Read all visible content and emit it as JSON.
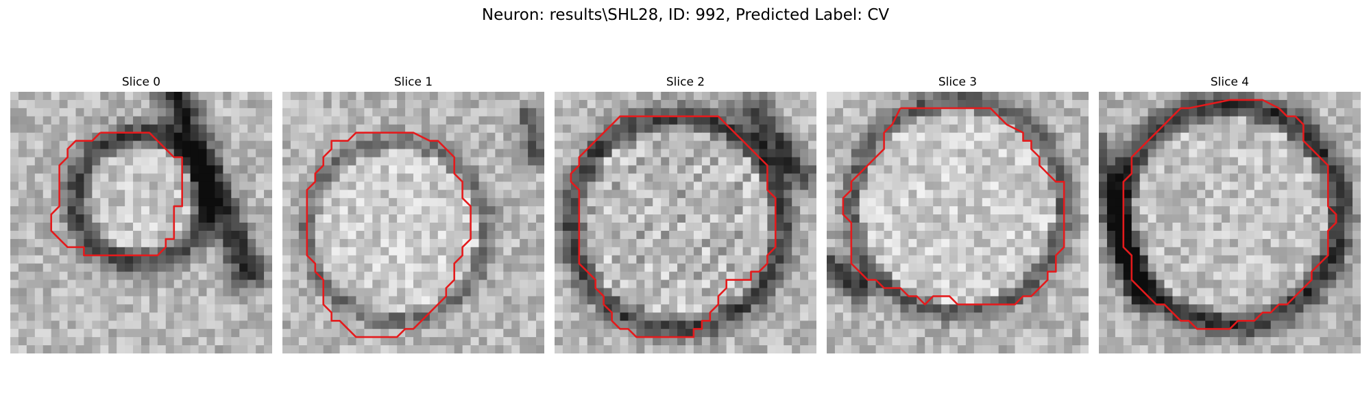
{
  "figure": {
    "title": "Neuron: results\\SHL28, ID: 992, Predicted Label: CV"
  },
  "panels": [
    {
      "label": "Slice 0",
      "contour": [
        [
          11,
          5
        ],
        [
          17,
          5
        ],
        [
          20,
          8
        ],
        [
          21,
          8
        ],
        [
          21,
          14
        ],
        [
          20,
          14
        ],
        [
          20,
          18
        ],
        [
          19,
          18
        ],
        [
          19,
          19
        ],
        [
          18,
          20
        ],
        [
          10,
          20
        ],
        [
          9,
          20
        ],
        [
          9,
          19
        ],
        [
          8,
          19
        ],
        [
          7,
          19
        ],
        [
          6,
          18
        ],
        [
          5,
          17
        ],
        [
          5,
          15
        ],
        [
          6,
          14
        ],
        [
          6,
          9
        ],
        [
          7,
          8
        ],
        [
          7,
          7
        ],
        [
          8,
          6
        ],
        [
          9,
          6
        ],
        [
          10,
          6
        ],
        [
          11,
          5
        ]
      ]
    },
    {
      "label": "Slice 1",
      "contour": [
        [
          11,
          5
        ],
        [
          16,
          5
        ],
        [
          18,
          6
        ],
        [
          19,
          6
        ],
        [
          20,
          7
        ],
        [
          21,
          8
        ],
        [
          21,
          10
        ],
        [
          22,
          11
        ],
        [
          22,
          13
        ],
        [
          23,
          14
        ],
        [
          23,
          17
        ],
        [
          23,
          18
        ],
        [
          22,
          19
        ],
        [
          22,
          20
        ],
        [
          21,
          21
        ],
        [
          21,
          23
        ],
        [
          20,
          24
        ],
        [
          20,
          25
        ],
        [
          18,
          27
        ],
        [
          17,
          28
        ],
        [
          16,
          29
        ],
        [
          15,
          29
        ],
        [
          14,
          30
        ],
        [
          12,
          30
        ],
        [
          10,
          30
        ],
        [
          9,
          30
        ],
        [
          8,
          29
        ],
        [
          7,
          28
        ],
        [
          6,
          28
        ],
        [
          6,
          27
        ],
        [
          5,
          26
        ],
        [
          5,
          25
        ],
        [
          5,
          23
        ],
        [
          4,
          22
        ],
        [
          4,
          21
        ],
        [
          3,
          20
        ],
        [
          3,
          19
        ],
        [
          3,
          18
        ],
        [
          3,
          17
        ],
        [
          3,
          16
        ],
        [
          3,
          15
        ],
        [
          3,
          14
        ],
        [
          3,
          13
        ],
        [
          3,
          12
        ],
        [
          4,
          11
        ],
        [
          4,
          10
        ],
        [
          5,
          9
        ],
        [
          5,
          8
        ],
        [
          6,
          7
        ],
        [
          6,
          6
        ],
        [
          7,
          6
        ],
        [
          8,
          6
        ],
        [
          9,
          5
        ],
        [
          11,
          5
        ]
      ]
    },
    {
      "label": "Slice 2",
      "contour": [
        [
          10,
          3
        ],
        [
          20,
          3
        ],
        [
          21,
          4
        ],
        [
          22,
          5
        ],
        [
          23,
          6
        ],
        [
          24,
          7
        ],
        [
          25,
          8
        ],
        [
          26,
          9
        ],
        [
          26,
          11
        ],
        [
          26,
          12
        ],
        [
          27,
          13
        ],
        [
          27,
          15
        ],
        [
          27,
          19
        ],
        [
          26,
          20
        ],
        [
          26,
          21
        ],
        [
          25,
          22
        ],
        [
          24,
          22
        ],
        [
          24,
          23
        ],
        [
          23,
          23
        ],
        [
          22,
          23
        ],
        [
          21,
          23
        ],
        [
          21,
          24
        ],
        [
          20,
          25
        ],
        [
          20,
          26
        ],
        [
          19,
          27
        ],
        [
          19,
          28
        ],
        [
          18,
          28
        ],
        [
          18,
          29
        ],
        [
          17,
          29
        ],
        [
          17,
          30
        ],
        [
          16,
          30
        ],
        [
          15,
          30
        ],
        [
          10,
          30
        ],
        [
          9,
          29
        ],
        [
          8,
          29
        ],
        [
          7,
          28
        ],
        [
          7,
          27
        ],
        [
          6,
          26
        ],
        [
          6,
          25
        ],
        [
          5,
          24
        ],
        [
          5,
          23
        ],
        [
          4,
          22
        ],
        [
          3,
          21
        ],
        [
          3,
          20
        ],
        [
          3,
          17
        ],
        [
          3,
          14
        ],
        [
          3,
          12
        ],
        [
          2,
          11
        ],
        [
          2,
          10
        ],
        [
          3,
          9
        ],
        [
          3,
          8
        ],
        [
          4,
          7
        ],
        [
          5,
          6
        ],
        [
          6,
          5
        ],
        [
          7,
          4
        ],
        [
          8,
          3
        ],
        [
          10,
          3
        ]
      ]
    },
    {
      "label": "Slice 3",
      "contour": [
        [
          9,
          2
        ],
        [
          20,
          2
        ],
        [
          22,
          4
        ],
        [
          24,
          5
        ],
        [
          24,
          6
        ],
        [
          25,
          6
        ],
        [
          25,
          7
        ],
        [
          26,
          8
        ],
        [
          26,
          9
        ],
        [
          27,
          10
        ],
        [
          28,
          11
        ],
        [
          29,
          11
        ],
        [
          29,
          13
        ],
        [
          29,
          15
        ],
        [
          29,
          16
        ],
        [
          29,
          19
        ],
        [
          28,
          20
        ],
        [
          28,
          21
        ],
        [
          28,
          22
        ],
        [
          27,
          22
        ],
        [
          27,
          23
        ],
        [
          26,
          24
        ],
        [
          25,
          25
        ],
        [
          24,
          25
        ],
        [
          23,
          26
        ],
        [
          22,
          26
        ],
        [
          21,
          26
        ],
        [
          20,
          26
        ],
        [
          16,
          26
        ],
        [
          15,
          25
        ],
        [
          14,
          25
        ],
        [
          13,
          25
        ],
        [
          12,
          26
        ],
        [
          11,
          25
        ],
        [
          10,
          25
        ],
        [
          9,
          24
        ],
        [
          8,
          24
        ],
        [
          7,
          24
        ],
        [
          6,
          23
        ],
        [
          5,
          23
        ],
        [
          4,
          22
        ],
        [
          3,
          21
        ],
        [
          3,
          20
        ],
        [
          3,
          19
        ],
        [
          3,
          18
        ],
        [
          3,
          17
        ],
        [
          3,
          16
        ],
        [
          2,
          15
        ],
        [
          2,
          14
        ],
        [
          2,
          13
        ],
        [
          3,
          12
        ],
        [
          3,
          11
        ],
        [
          4,
          10
        ],
        [
          5,
          9
        ],
        [
          6,
          8
        ],
        [
          7,
          7
        ],
        [
          7,
          5
        ],
        [
          8,
          4
        ],
        [
          9,
          2
        ]
      ]
    },
    {
      "label": "Slice 4",
      "contour": [
        [
          11,
          2
        ],
        [
          16,
          1
        ],
        [
          20,
          1
        ],
        [
          22,
          2
        ],
        [
          23,
          3
        ],
        [
          24,
          3
        ],
        [
          25,
          4
        ],
        [
          25,
          5
        ],
        [
          25,
          6
        ],
        [
          26,
          7
        ],
        [
          27,
          8
        ],
        [
          28,
          9
        ],
        [
          28,
          11
        ],
        [
          28,
          12
        ],
        [
          28,
          14
        ],
        [
          29,
          15
        ],
        [
          29,
          16
        ],
        [
          28,
          17
        ],
        [
          28,
          19
        ],
        [
          28,
          20
        ],
        [
          27,
          21
        ],
        [
          26,
          22
        ],
        [
          26,
          23
        ],
        [
          25,
          24
        ],
        [
          24,
          25
        ],
        [
          23,
          26
        ],
        [
          22,
          26
        ],
        [
          21,
          27
        ],
        [
          20,
          27
        ],
        [
          19,
          28
        ],
        [
          18,
          28
        ],
        [
          17,
          28
        ],
        [
          16,
          29
        ],
        [
          12,
          29
        ],
        [
          11,
          28
        ],
        [
          10,
          28
        ],
        [
          9,
          27
        ],
        [
          8,
          26
        ],
        [
          7,
          26
        ],
        [
          6,
          25
        ],
        [
          5,
          24
        ],
        [
          4,
          23
        ],
        [
          4,
          22
        ],
        [
          4,
          21
        ],
        [
          4,
          20
        ],
        [
          3,
          19
        ],
        [
          3,
          17
        ],
        [
          3,
          16
        ],
        [
          3,
          14
        ],
        [
          3,
          12
        ],
        [
          3,
          11
        ],
        [
          4,
          10
        ],
        [
          4,
          9
        ],
        [
          4,
          8
        ],
        [
          5,
          7
        ],
        [
          6,
          6
        ],
        [
          7,
          5
        ],
        [
          8,
          4
        ],
        [
          9,
          3
        ],
        [
          10,
          2
        ],
        [
          11,
          2
        ]
      ]
    }
  ],
  "colors": {
    "contour": "#e41a1c",
    "background": "#ffffff"
  }
}
